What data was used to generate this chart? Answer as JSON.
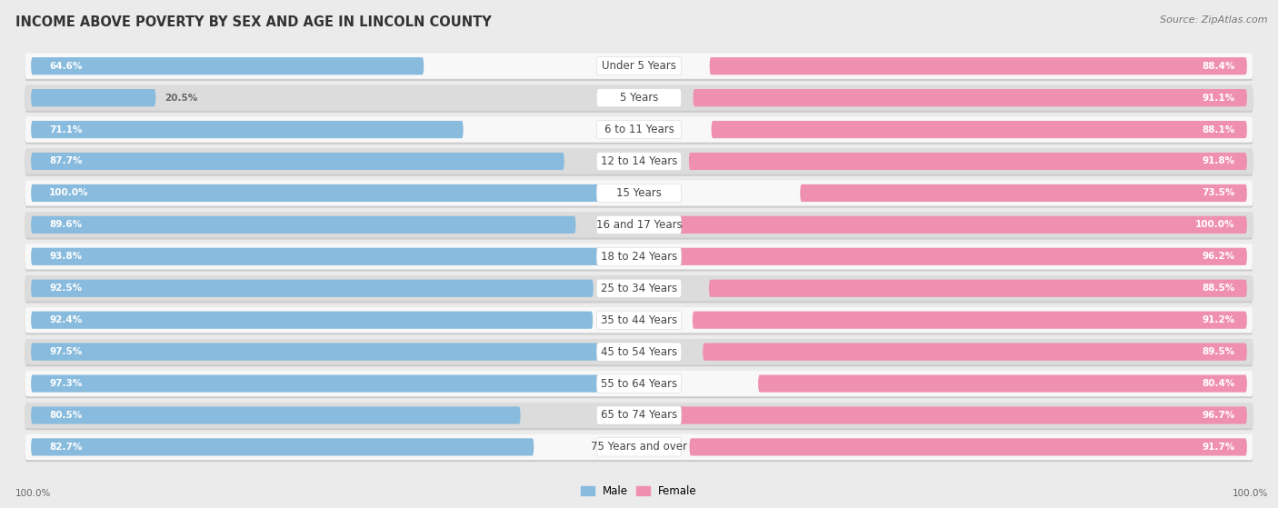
{
  "title": "INCOME ABOVE POVERTY BY SEX AND AGE IN LINCOLN COUNTY",
  "source": "Source: ZipAtlas.com",
  "categories": [
    "Under 5 Years",
    "5 Years",
    "6 to 11 Years",
    "12 to 14 Years",
    "15 Years",
    "16 and 17 Years",
    "18 to 24 Years",
    "25 to 34 Years",
    "35 to 44 Years",
    "45 to 54 Years",
    "55 to 64 Years",
    "65 to 74 Years",
    "75 Years and over"
  ],
  "male_values": [
    64.6,
    20.5,
    71.1,
    87.7,
    100.0,
    89.6,
    93.8,
    92.5,
    92.4,
    97.5,
    97.3,
    80.5,
    82.7
  ],
  "female_values": [
    88.4,
    91.1,
    88.1,
    91.8,
    73.5,
    100.0,
    96.2,
    88.5,
    91.2,
    89.5,
    80.4,
    96.7,
    91.7
  ],
  "male_color": "#88BBDD",
  "female_color": "#F090B0",
  "male_label": "Male",
  "female_label": "Female",
  "bg_color": "#EBEBEB",
  "row_light_color": "#F8F8F8",
  "row_dark_color": "#DCDCDC",
  "shadow_color": "#CCCCCC",
  "max_value": 100.0,
  "title_fontsize": 10.5,
  "label_fontsize": 8.5,
  "value_fontsize": 7.5,
  "source_fontsize": 8
}
